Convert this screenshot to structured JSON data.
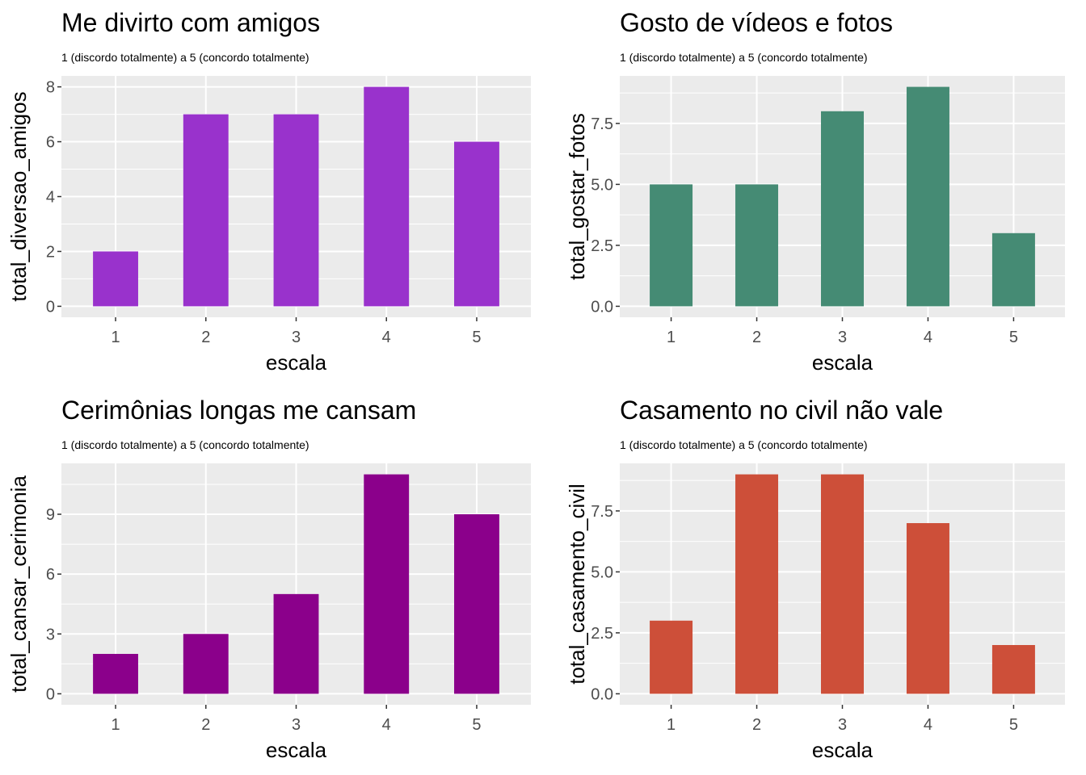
{
  "chart_data": [
    {
      "type": "bar",
      "title": "Me divirto com amigos",
      "subtitle": "1 (discordo totalmente) a 5 (concordo totalmente)",
      "xlabel": "escala",
      "ylabel": "total_diversao_amigos",
      "categories": [
        "1",
        "2",
        "3",
        "4",
        "5"
      ],
      "values": [
        2,
        7,
        7,
        8,
        6
      ],
      "ylim": [
        0,
        8.4
      ],
      "yticks": [
        0,
        2,
        4,
        6,
        8
      ],
      "ytick_labels": [
        "0",
        "2",
        "4",
        "6",
        "8"
      ],
      "color": "#9932CC",
      "grid": true,
      "legend": "none"
    },
    {
      "type": "bar",
      "title": "Gosto de vídeos e fotos",
      "subtitle": "1 (discordo totalmente) a 5 (concordo totalmente)",
      "xlabel": "escala",
      "ylabel": "total_gostar_fotos",
      "categories": [
        "1",
        "2",
        "3",
        "4",
        "5"
      ],
      "values": [
        5,
        5,
        8,
        9,
        3
      ],
      "ylim": [
        0,
        9.45
      ],
      "yticks": [
        0,
        2.5,
        5,
        7.5
      ],
      "ytick_labels": [
        "0.0",
        "2.5",
        "5.0",
        "7.5"
      ],
      "color": "#458B74",
      "grid": true,
      "legend": "none"
    },
    {
      "type": "bar",
      "title": "Cerimônias longas me cansam",
      "subtitle": "1 (discordo totalmente) a 5 (concordo totalmente)",
      "xlabel": "escala",
      "ylabel": "total_cansar_cerimonia",
      "categories": [
        "1",
        "2",
        "3",
        "4",
        "5"
      ],
      "values": [
        2,
        3,
        5,
        11,
        9
      ],
      "ylim": [
        0,
        11.55
      ],
      "yticks": [
        0,
        3,
        6,
        9
      ],
      "ytick_labels": [
        "0",
        "3",
        "6",
        "9"
      ],
      "color": "#8B008B",
      "grid": true,
      "legend": "none"
    },
    {
      "type": "bar",
      "title": "Casamento no civil não vale",
      "subtitle": "1 (discordo totalmente) a 5 (concordo totalmente)",
      "xlabel": "escala",
      "ylabel": "total_casamento_civil",
      "categories": [
        "1",
        "2",
        "3",
        "4",
        "5"
      ],
      "values": [
        3,
        9,
        9,
        7,
        2
      ],
      "ylim": [
        0,
        9.45
      ],
      "yticks": [
        0,
        2.5,
        5,
        7.5
      ],
      "ytick_labels": [
        "0.0",
        "2.5",
        "5.0",
        "7.5"
      ],
      "color": "#CD4F39",
      "grid": true,
      "legend": "none"
    }
  ]
}
